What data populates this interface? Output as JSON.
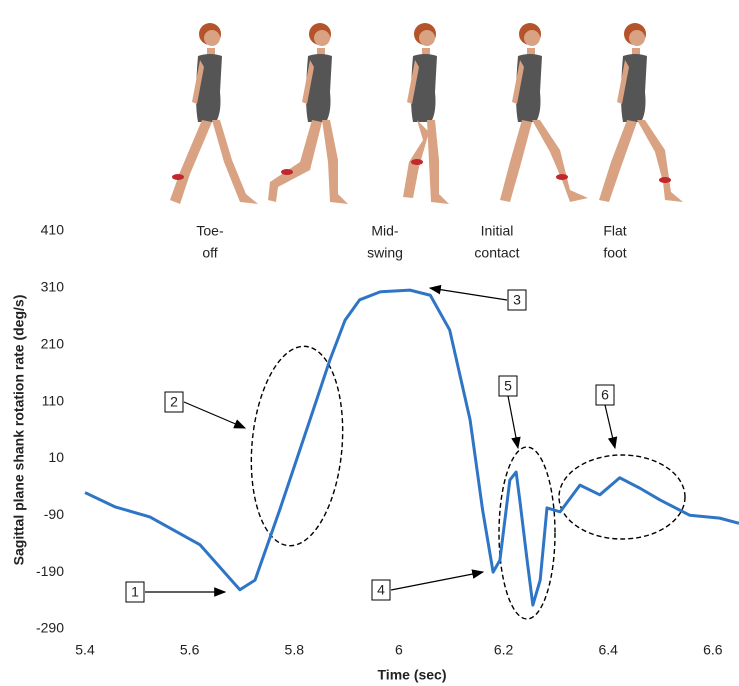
{
  "chart_data": {
    "type": "line",
    "x_label": "Time (sec)",
    "y_label": "Sagittal plane shank rotation rate (deg/s)",
    "xlim": [
      5.4,
      6.65
    ],
    "ylim": [
      -290,
      410
    ],
    "xticks": [
      5.4,
      5.6,
      5.8,
      6,
      6.2,
      6.4,
      6.6
    ],
    "yticks": [
      -290,
      -190,
      -90,
      10,
      110,
      210,
      310,
      410
    ],
    "series": [
      {
        "color": "#2e75c6",
        "x": [
          5.4,
          5.457,
          5.524,
          5.62,
          5.696,
          5.725,
          5.772,
          5.83,
          5.868,
          5.897,
          5.925,
          5.964,
          6.021,
          6.06,
          6.097,
          6.136,
          6.16,
          6.18,
          6.193,
          6.212,
          6.224,
          6.231,
          6.245,
          6.256,
          6.27,
          6.283,
          6.308,
          6.346,
          6.384,
          6.422,
          6.46,
          6.499,
          6.556,
          6.613,
          6.65
        ],
        "values": [
          -50,
          -75,
          -93,
          -142,
          -221,
          -204,
          -81,
          78,
          183,
          253,
          289,
          303,
          306,
          297,
          236,
          78,
          -81,
          -190,
          -169,
          -28,
          -14,
          -63,
          -169,
          -248,
          -204,
          -77,
          -84,
          -37,
          -54,
          -24,
          -42,
          -63,
          -90,
          -95,
          -104
        ]
      }
    ],
    "phases": [
      [
        "Toe-",
        "off"
      ],
      [
        "Mid-",
        "swing"
      ],
      [
        "Initial",
        "contact"
      ],
      [
        "Flat",
        "foot"
      ]
    ],
    "annotations": [
      "1",
      "2",
      "3",
      "4",
      "5",
      "6"
    ]
  }
}
